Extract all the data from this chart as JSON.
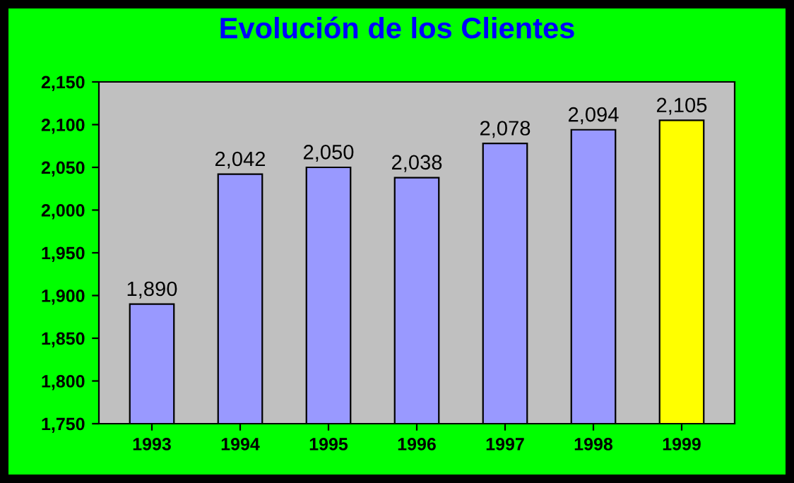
{
  "chart_data": {
    "type": "bar",
    "title": "Evolución de los Clientes",
    "categories": [
      "1993",
      "1994",
      "1995",
      "1996",
      "1997",
      "1998",
      "1999"
    ],
    "values": [
      1890,
      2042,
      2050,
      2038,
      2078,
      2094,
      2105
    ],
    "colors": [
      "#9999ff",
      "#9999ff",
      "#9999ff",
      "#9999ff",
      "#9999ff",
      "#9999ff",
      "#ffff00"
    ],
    "value_labels": [
      "1,890",
      "2,042",
      "2,050",
      "2,038",
      "2,078",
      "2,094",
      "2,105"
    ],
    "ylim": [
      1750,
      2150
    ],
    "yticks": [
      {
        "value": 1750,
        "label": "1,750"
      },
      {
        "value": 1800,
        "label": "1,800"
      },
      {
        "value": 1850,
        "label": "1,850"
      },
      {
        "value": 1900,
        "label": "1,900"
      },
      {
        "value": 1950,
        "label": "1,950"
      },
      {
        "value": 2000,
        "label": "2,000"
      },
      {
        "value": 2050,
        "label": "2,050"
      },
      {
        "value": 2100,
        "label": "2,100"
      },
      {
        "value": 2150,
        "label": "2,150"
      }
    ],
    "grid": false
  }
}
